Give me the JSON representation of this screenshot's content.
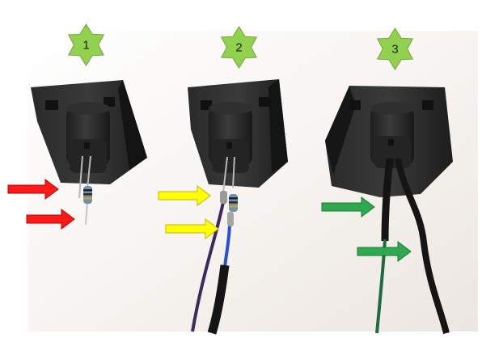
{
  "steps": [
    {
      "label": "1",
      "badge_color": "#92d050"
    },
    {
      "label": "2",
      "badge_color": "#92d050"
    },
    {
      "label": "3",
      "badge_color": "#92d050"
    }
  ],
  "arrow_colors": {
    "step_1": "#ff1a1a",
    "step_2": "#ffff00",
    "step_3": "#2fa84f"
  },
  "icons": [
    "star-badge-icon",
    "arrow-right-icon"
  ]
}
